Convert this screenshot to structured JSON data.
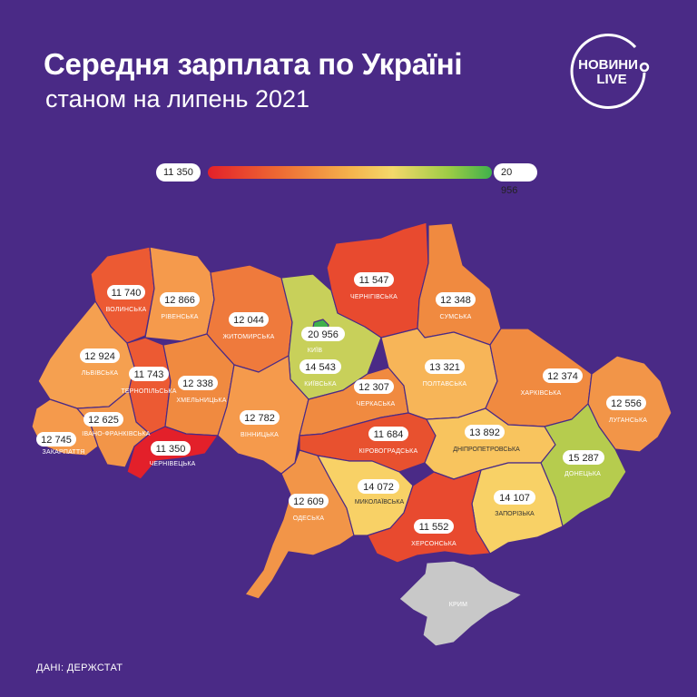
{
  "title": "Середня зарплата по Україні",
  "subtitle": "станом на липень 2021",
  "logo": {
    "line1": "НОВИНИ",
    "line2": "LIVE"
  },
  "legend": {
    "min": "11 350",
    "max": "20 956"
  },
  "source": "ДАНІ: ДЕРЖСТАТ",
  "colors": {
    "background": "#4a2a86",
    "min": "#e3202a",
    "max": "#3fb14b",
    "crimea": "#c8c8c8"
  },
  "regions": [
    {
      "id": "volynska",
      "name": "ВОЛИНСЬКА",
      "value": "11 740",
      "color": "#ec5a33"
    },
    {
      "id": "rivnenska",
      "name": "РІВЕНСЬКА",
      "value": "12 866",
      "color": "#f59a4c"
    },
    {
      "id": "zhytomyrska",
      "name": "ЖИТОМИРСЬКА",
      "value": "12 044",
      "color": "#ef7a3c"
    },
    {
      "id": "kyiv",
      "name": "КИЇВ",
      "value": "20 956",
      "color": "#3fb14b"
    },
    {
      "id": "chernihivska",
      "name": "ЧЕРНІГІВСЬКА",
      "value": "11 547",
      "color": "#e84a2f"
    },
    {
      "id": "sumska",
      "name": "СУМСЬКА",
      "value": "12 348",
      "color": "#f08a40"
    },
    {
      "id": "lvivska",
      "name": "ЛЬВІВСЬКА",
      "value": "12 924",
      "color": "#f5a050"
    },
    {
      "id": "ternopilska",
      "name": "ТЕРНОПІЛЬСЬКА",
      "value": "11 743",
      "color": "#ec5a33"
    },
    {
      "id": "khmelnytska",
      "name": "ХМЕЛЬНИЦЬКА",
      "value": "12 338",
      "color": "#f08a40"
    },
    {
      "id": "kyivska",
      "name": "КИЇВСЬКА",
      "value": "14 543",
      "color": "#c8d05a"
    },
    {
      "id": "cherkaska",
      "name": "ЧЕРКАСЬКА",
      "value": "12 307",
      "color": "#f08a40"
    },
    {
      "id": "poltavska",
      "name": "ПОЛТАВСЬКА",
      "value": "13 321",
      "color": "#f7b558"
    },
    {
      "id": "kharkivska",
      "name": "ХАРКІВСЬКА",
      "value": "12 374",
      "color": "#f08a40"
    },
    {
      "id": "luhanska",
      "name": "ЛУГАНСЬКА",
      "value": "12 556",
      "color": "#f29548"
    },
    {
      "id": "zakarpattia",
      "name": "ЗАКАРПАТТЯ",
      "value": "12 745",
      "color": "#f59a4c"
    },
    {
      "id": "ivano",
      "name": "ІВАНО-ФРАНКІВСЬКА",
      "value": "12 625",
      "color": "#f29548"
    },
    {
      "id": "chernivetska",
      "name": "ЧЕРНІВЕЦЬКА",
      "value": "11 350",
      "color": "#e3202a"
    },
    {
      "id": "vinnytska",
      "name": "ВІННИЦЬКА",
      "value": "12 782",
      "color": "#f59a4c"
    },
    {
      "id": "kirovohradska",
      "name": "КІРОВОГРАДСЬКА",
      "value": "11 684",
      "color": "#e8512f"
    },
    {
      "id": "dnipropetrovska",
      "name": "ДНІПРОПЕТРОВСЬКА",
      "value": "13 892",
      "color": "#f8c45e"
    },
    {
      "id": "donetska",
      "name": "ДОНЕЦЬКА",
      "value": "15 287",
      "color": "#b6cc4e"
    },
    {
      "id": "odeska",
      "name": "ОДЕСЬКА",
      "value": "12 609",
      "color": "#f29548"
    },
    {
      "id": "mykolaivska",
      "name": "МИКОЛАЇВСЬКА",
      "value": "14 072",
      "color": "#f8d166"
    },
    {
      "id": "zaporizka",
      "name": "ЗАПОРІЗЬКА",
      "value": "14 107",
      "color": "#f8d166"
    },
    {
      "id": "khersonska",
      "name": "ХЕРСОНСЬКА",
      "value": "11 552",
      "color": "#e84a2f"
    },
    {
      "id": "krym",
      "name": "КРИМ",
      "color": "#c8c8c8"
    }
  ]
}
